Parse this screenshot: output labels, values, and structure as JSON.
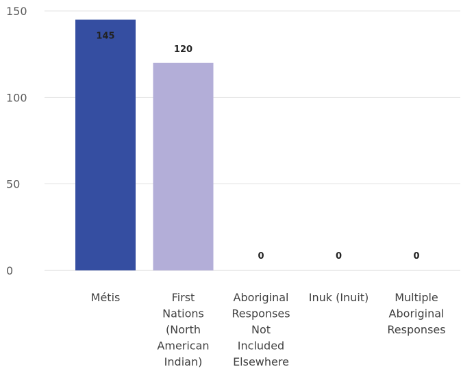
{
  "chart_data": {
    "type": "bar",
    "categories": [
      [
        "Métis"
      ],
      [
        "First",
        "Nations",
        "(North",
        "American",
        "Indian)"
      ],
      [
        "Aboriginal",
        "Responses",
        "Not",
        "Included",
        "Elsewhere"
      ],
      [
        "Inuk (Inuit)"
      ],
      [
        "Multiple",
        "Aboriginal",
        "Responses"
      ]
    ],
    "values": [
      145,
      120,
      0,
      0,
      0
    ],
    "data_labels": [
      "145",
      "120",
      "0",
      "0",
      "0"
    ],
    "bar_colors": [
      "#354ea1",
      "#b3aed8",
      "#354ea1",
      "#354ea1",
      "#354ea1"
    ],
    "ylim": [
      0,
      150
    ],
    "yticks": [
      0,
      50,
      100,
      150
    ],
    "grid": true,
    "title": "",
    "xlabel": "",
    "ylabel": ""
  }
}
